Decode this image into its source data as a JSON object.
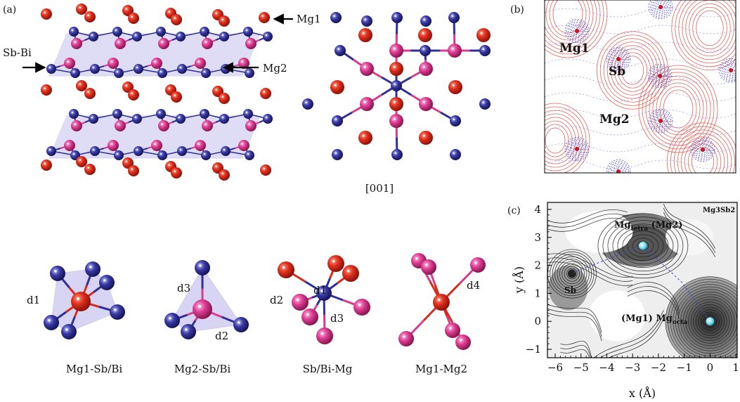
{
  "panels": {
    "a": {
      "tag": "(a)",
      "labels": {
        "mg1": "Mg1",
        "mg2": "Mg2",
        "sbbi": "Sb-Bi"
      },
      "projection": "[001]",
      "polyhedra": [
        {
          "caption": "Mg1-Sb/Bi",
          "bond": "d1"
        },
        {
          "caption": "Mg2-Sb/Bi",
          "bond1": "d3",
          "bond2": "d2"
        },
        {
          "caption": "Sb/Bi-Mg",
          "bond1": "d1",
          "bond2": "d2",
          "bond3": "d3"
        },
        {
          "caption": "Mg1-Mg2",
          "bond": "d4"
        }
      ]
    },
    "b": {
      "tag": "(b)",
      "labels": {
        "mg1": "Mg1",
        "sb": "Sb",
        "mg2": "Mg2"
      }
    },
    "c": {
      "tag": "(c)",
      "compound": "Mg3Sb2",
      "labels": {
        "sb": "Sb",
        "mg2_pre": "Mg",
        "mg2_sub": "tetra",
        "mg2_post": " (Mg2)",
        "mg1_pre": "(Mg1) Mg",
        "mg1_sub": "octa"
      },
      "x_label": "x (Å)",
      "y_label": "y (Å)",
      "x_ticks": [
        "−6",
        "−5",
        "−4",
        "−3",
        "−2",
        "−1",
        "0",
        "1"
      ],
      "y_ticks": [
        "4",
        "3",
        "2",
        "1",
        "0",
        "−1"
      ]
    }
  },
  "colors": {
    "mg1": "#d72a1c",
    "mg2": "#d93a8f",
    "sb": "#2f2f95",
    "poly": "#b8b4ea",
    "pos_contour": "#e0665a",
    "neg_contour": "#4a4ad0"
  }
}
